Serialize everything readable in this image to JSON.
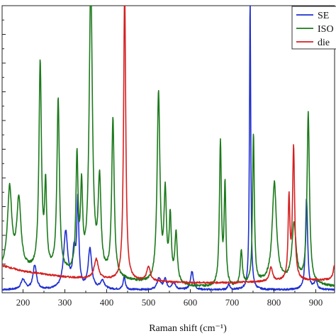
{
  "chart_data": {
    "type": "line",
    "xlabel": "Raman shift (cm⁻¹)",
    "x_ticks": [
      200,
      300,
      400,
      500,
      600,
      700,
      800,
      900
    ],
    "xlim": [
      150,
      945
    ],
    "ylim": [
      0,
      1.0
    ],
    "grid": false,
    "legend_position": "top-right",
    "series": [
      {
        "name": "SE",
        "color": "#1f2fd0",
        "baseline": 0.012,
        "noise": 0.003,
        "background": [
          [
            150,
            0.01
          ],
          [
            945,
            0.01
          ]
        ],
        "peaks": [
          [
            200,
            0.035,
            6
          ],
          [
            228,
            0.085,
            5
          ],
          [
            302,
            0.2,
            6
          ],
          [
            322,
            0.12,
            4
          ],
          [
            331,
            0.3,
            3
          ],
          [
            360,
            0.14,
            5
          ],
          [
            390,
            0.03,
            6
          ],
          [
            442,
            0.045,
            3
          ],
          [
            525,
            0.04,
            5
          ],
          [
            540,
            0.035,
            4
          ],
          [
            560,
            0.025,
            5
          ],
          [
            604,
            0.065,
            4
          ],
          [
            692,
            0.02,
            3
          ],
          [
            743,
            1.02,
            1.8
          ],
          [
            878,
            0.32,
            3
          ],
          [
            900,
            0.03,
            4
          ]
        ]
      },
      {
        "name": "ISO",
        "color": "#1c7a1c",
        "baseline": 0.06,
        "noise": 0.004,
        "background": [
          [
            150,
            0.08
          ],
          [
            250,
            0.07
          ],
          [
            400,
            0.05
          ],
          [
            500,
            0.03
          ],
          [
            600,
            0.02
          ],
          [
            700,
            0.015
          ],
          [
            800,
            0.04
          ],
          [
            945,
            0.02
          ]
        ],
        "peaks": [
          [
            168,
            0.28,
            6
          ],
          [
            190,
            0.24,
            6
          ],
          [
            241,
            0.72,
            3.5
          ],
          [
            254,
            0.28,
            3
          ],
          [
            284,
            0.6,
            3.5
          ],
          [
            329,
            0.4,
            3
          ],
          [
            340,
            0.28,
            3
          ],
          [
            362,
            1.02,
            4.5
          ],
          [
            383,
            0.32,
            4
          ],
          [
            415,
            0.55,
            3.5
          ],
          [
            524,
            0.66,
            4
          ],
          [
            540,
            0.3,
            3.5
          ],
          [
            552,
            0.22,
            3
          ],
          [
            566,
            0.17,
            3.5
          ],
          [
            672,
            0.5,
            2.8
          ],
          [
            683,
            0.35,
            2.5
          ],
          [
            722,
            0.12,
            3
          ],
          [
            751,
            0.52,
            2.5
          ],
          [
            801,
            0.34,
            6
          ],
          [
            848,
            0.2,
            6
          ],
          [
            882,
            0.59,
            3.5
          ]
        ]
      },
      {
        "name": "die",
        "color": "#d42020",
        "baseline": 0.05,
        "noise": 0.003,
        "background": [
          [
            150,
            0.095
          ],
          [
            200,
            0.075
          ],
          [
            300,
            0.055
          ],
          [
            400,
            0.045
          ],
          [
            500,
            0.04
          ],
          [
            600,
            0.035
          ],
          [
            700,
            0.035
          ],
          [
            800,
            0.04
          ],
          [
            945,
            0.045
          ]
        ],
        "peaks": [
          [
            375,
            0.07,
            6
          ],
          [
            443,
            1.02,
            3
          ],
          [
            500,
            0.05,
            5
          ],
          [
            793,
            0.05,
            4
          ],
          [
            836,
            0.28,
            2.5
          ],
          [
            847,
            0.46,
            3
          ],
          [
            945,
            0.05,
            4
          ]
        ]
      }
    ]
  }
}
